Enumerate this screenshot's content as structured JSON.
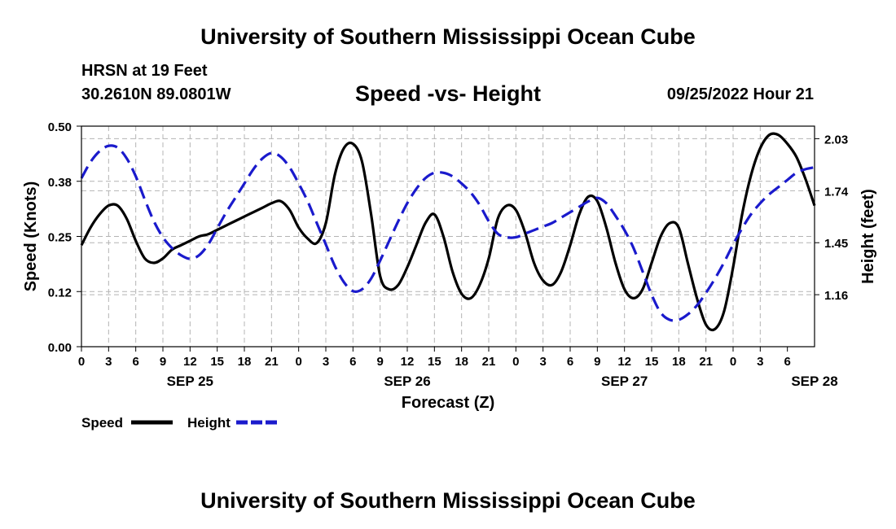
{
  "header": {
    "title": "University of Southern Mississippi Ocean Cube",
    "station": "HRSN at 19 Feet",
    "coordinates": "30.2610N  89.0801W",
    "datetime": "09/25/2022 Hour 21"
  },
  "footer": {
    "title": "University of Southern Mississippi Ocean Cube"
  },
  "chart_data": {
    "type": "line",
    "title": "Speed -vs- Height",
    "xlabel": "Forecast (Z)",
    "ylabel_left": "Speed (Knots)",
    "ylabel_right": "Height (feet)",
    "x_hours_range": [
      0,
      81
    ],
    "x_tick_labels": [
      "0",
      "3",
      "6",
      "9",
      "12",
      "15",
      "18",
      "21",
      "0",
      "3",
      "6",
      "9",
      "12",
      "15",
      "18",
      "21",
      "0",
      "3",
      "6",
      "9",
      "12",
      "15",
      "18",
      "21",
      "0",
      "3",
      "6"
    ],
    "date_labels": [
      {
        "label": "SEP 25",
        "hour": 12
      },
      {
        "label": "SEP 26",
        "hour": 36
      },
      {
        "label": "SEP 27",
        "hour": 60
      },
      {
        "label": "SEP 28",
        "hour": 81
      }
    ],
    "ylim_left": [
      0,
      0.5
    ],
    "yticks_left": [
      "0.00",
      "0.12",
      "0.25",
      "0.38",
      "0.50"
    ],
    "ylim_right": [
      0.87,
      2.1
    ],
    "yticks_right": [
      "1.16",
      "1.45",
      "1.74",
      "2.03"
    ],
    "grid": true,
    "legend": [
      {
        "name": "Speed",
        "color": "#000000",
        "style": "solid"
      },
      {
        "name": "Height",
        "color": "#1a1acc",
        "style": "dashed"
      }
    ],
    "series": [
      {
        "name": "Speed",
        "axis": "left",
        "color": "#000000",
        "x": [
          0,
          1,
          2,
          3,
          4,
          5,
          6,
          7,
          8,
          9,
          10,
          11,
          12,
          13,
          14,
          15,
          16,
          17,
          18,
          19,
          20,
          21,
          22,
          23,
          24,
          25,
          26,
          27,
          28,
          29,
          30,
          31,
          32,
          33,
          34,
          35,
          36,
          37,
          38,
          39,
          40,
          41,
          42,
          43,
          44,
          45,
          46,
          47,
          48,
          49,
          50,
          51,
          52,
          53,
          54,
          55,
          56,
          57,
          58,
          59,
          60,
          61,
          62,
          63,
          64,
          65,
          66,
          67,
          68,
          69,
          70,
          71,
          72,
          73,
          74,
          75,
          76,
          77,
          78,
          79,
          80,
          81
        ],
        "values": [
          0.23,
          0.27,
          0.3,
          0.32,
          0.32,
          0.29,
          0.24,
          0.2,
          0.19,
          0.2,
          0.22,
          0.23,
          0.24,
          0.25,
          0.255,
          0.265,
          0.275,
          0.285,
          0.295,
          0.305,
          0.315,
          0.325,
          0.33,
          0.31,
          0.27,
          0.245,
          0.235,
          0.28,
          0.39,
          0.45,
          0.46,
          0.42,
          0.3,
          0.16,
          0.13,
          0.14,
          0.18,
          0.23,
          0.28,
          0.3,
          0.25,
          0.17,
          0.12,
          0.11,
          0.14,
          0.2,
          0.29,
          0.32,
          0.31,
          0.26,
          0.19,
          0.15,
          0.14,
          0.17,
          0.23,
          0.3,
          0.34,
          0.33,
          0.27,
          0.19,
          0.13,
          0.11,
          0.13,
          0.19,
          0.25,
          0.28,
          0.27,
          0.19,
          0.11,
          0.05,
          0.04,
          0.08,
          0.18,
          0.3,
          0.39,
          0.45,
          0.48,
          0.48,
          0.46,
          0.43,
          0.38,
          0.32
        ]
      },
      {
        "name": "Height",
        "axis": "right",
        "color": "#1a1acc",
        "x": [
          0,
          1,
          2,
          3,
          4,
          5,
          6,
          7,
          8,
          9,
          10,
          11,
          12,
          13,
          14,
          15,
          16,
          17,
          18,
          19,
          20,
          21,
          22,
          23,
          24,
          25,
          26,
          27,
          28,
          29,
          30,
          31,
          32,
          33,
          34,
          35,
          36,
          37,
          38,
          39,
          40,
          41,
          42,
          43,
          44,
          45,
          46,
          47,
          48,
          49,
          50,
          51,
          52,
          53,
          54,
          55,
          56,
          57,
          58,
          59,
          60,
          61,
          62,
          63,
          64,
          65,
          66,
          67,
          68,
          69,
          70,
          71,
          72,
          73,
          74,
          75,
          76,
          77,
          78,
          79,
          80,
          81
        ],
        "values": [
          1.81,
          1.9,
          1.96,
          1.99,
          1.98,
          1.92,
          1.82,
          1.69,
          1.57,
          1.48,
          1.42,
          1.38,
          1.36,
          1.38,
          1.44,
          1.53,
          1.62,
          1.7,
          1.78,
          1.86,
          1.92,
          1.95,
          1.93,
          1.87,
          1.78,
          1.68,
          1.56,
          1.44,
          1.32,
          1.23,
          1.18,
          1.19,
          1.25,
          1.35,
          1.46,
          1.57,
          1.67,
          1.75,
          1.81,
          1.84,
          1.84,
          1.82,
          1.78,
          1.73,
          1.66,
          1.57,
          1.5,
          1.48,
          1.48,
          1.5,
          1.52,
          1.54,
          1.56,
          1.59,
          1.62,
          1.65,
          1.68,
          1.7,
          1.67,
          1.6,
          1.52,
          1.42,
          1.29,
          1.16,
          1.06,
          1.02,
          1.02,
          1.05,
          1.1,
          1.17,
          1.25,
          1.34,
          1.44,
          1.53,
          1.61,
          1.67,
          1.72,
          1.76,
          1.8,
          1.84,
          1.86,
          1.87
        ]
      }
    ]
  }
}
